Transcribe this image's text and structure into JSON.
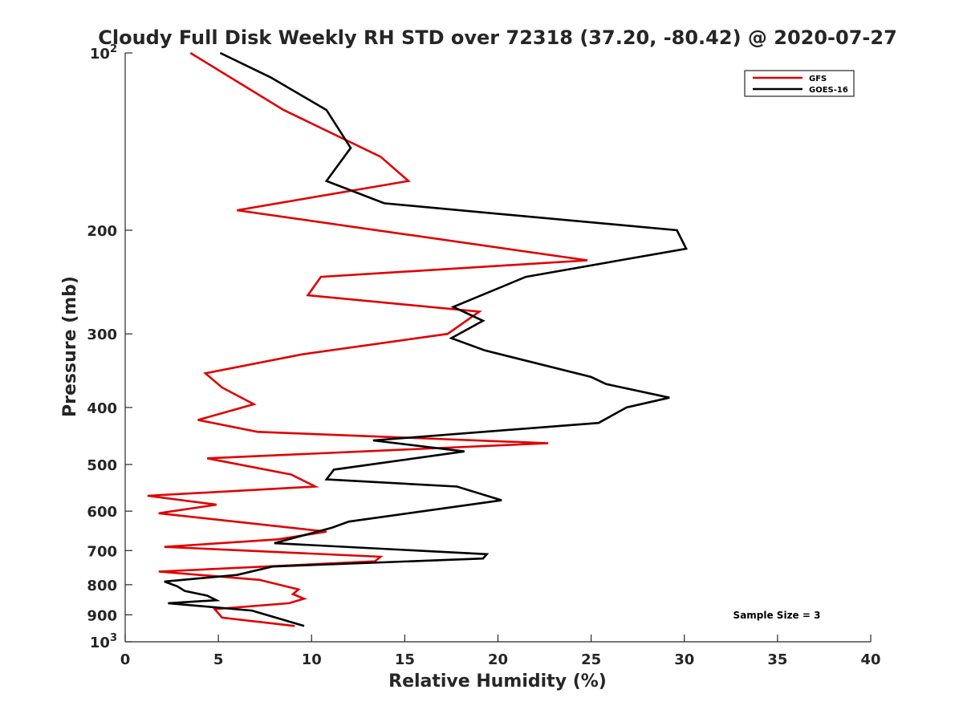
{
  "chart_data": {
    "type": "line",
    "title": "Cloudy Full Disk Weekly RH STD over 72318 (37.20, -80.42) @ 2020-07-27",
    "xlabel": "Relative Humidity (%)",
    "ylabel": "Pressure (mb)",
    "xlim": [
      0,
      40
    ],
    "ylim": [
      100,
      1000
    ],
    "yscale": "log",
    "y_reversed": true,
    "xticks": [
      0,
      5,
      10,
      15,
      20,
      25,
      30,
      35,
      40
    ],
    "yticks": [
      100,
      200,
      300,
      400,
      500,
      600,
      700,
      800,
      900,
      1000
    ],
    "ytick_labels": {
      "100": {
        "base": "10",
        "exp": "2"
      },
      "200": "200",
      "300": "300",
      "400": "400",
      "500": "500",
      "600": "600",
      "700": "700",
      "800": "800",
      "900": "900",
      "1000": {
        "base": "10",
        "exp": "3"
      }
    },
    "legend_position": "top-right",
    "annotation": "Sample Size = 3",
    "series": [
      {
        "name": "GFS",
        "color": "#e00000",
        "points": [
          [
            3.5,
            100
          ],
          [
            8.5,
            125
          ],
          [
            13.7,
            150
          ],
          [
            15.2,
            165
          ],
          [
            6.0,
            185
          ],
          [
            24.8,
            225
          ],
          [
            10.5,
            240
          ],
          [
            9.8,
            258
          ],
          [
            19.0,
            275
          ],
          [
            17.3,
            300
          ],
          [
            9.5,
            325
          ],
          [
            4.3,
            350
          ],
          [
            5.2,
            370
          ],
          [
            6.9,
            395
          ],
          [
            3.9,
            420
          ],
          [
            7.1,
            440
          ],
          [
            22.7,
            460
          ],
          [
            4.4,
            488
          ],
          [
            8.9,
            520
          ],
          [
            10.2,
            545
          ],
          [
            1.2,
            565
          ],
          [
            4.9,
            585
          ],
          [
            1.8,
            605
          ],
          [
            10.8,
            650
          ],
          [
            8.2,
            670
          ],
          [
            2.1,
            690
          ],
          [
            13.7,
            717
          ],
          [
            13.4,
            730
          ],
          [
            1.8,
            760
          ],
          [
            7.2,
            785
          ],
          [
            9.3,
            815
          ],
          [
            9.0,
            830
          ],
          [
            9.6,
            845
          ],
          [
            8.8,
            860
          ],
          [
            4.8,
            880
          ],
          [
            5.2,
            910
          ],
          [
            9.1,
            940
          ]
        ]
      },
      {
        "name": "GOES-16",
        "color": "#000000",
        "points": [
          [
            5.1,
            100
          ],
          [
            7.8,
            110
          ],
          [
            10.8,
            125
          ],
          [
            12.1,
            145
          ],
          [
            10.8,
            165
          ],
          [
            13.9,
            180
          ],
          [
            29.6,
            200
          ],
          [
            30.1,
            215
          ],
          [
            21.5,
            240
          ],
          [
            17.6,
            270
          ],
          [
            19.2,
            285
          ],
          [
            17.5,
            305
          ],
          [
            19.3,
            320
          ],
          [
            25.0,
            355
          ],
          [
            25.8,
            365
          ],
          [
            29.2,
            385
          ],
          [
            26.9,
            400
          ],
          [
            25.4,
            425
          ],
          [
            13.3,
            455
          ],
          [
            18.2,
            475
          ],
          [
            11.2,
            510
          ],
          [
            10.8,
            530
          ],
          [
            17.8,
            545
          ],
          [
            20.2,
            575
          ],
          [
            16.0,
            600
          ],
          [
            12.0,
            625
          ],
          [
            11.1,
            640
          ],
          [
            8.0,
            680
          ],
          [
            19.4,
            710
          ],
          [
            19.2,
            722
          ],
          [
            7.9,
            745
          ],
          [
            6.0,
            770
          ],
          [
            2.1,
            790
          ],
          [
            2.8,
            805
          ],
          [
            3.2,
            820
          ],
          [
            4.4,
            835
          ],
          [
            4.9,
            850
          ],
          [
            2.3,
            860
          ],
          [
            6.8,
            885
          ],
          [
            9.6,
            940
          ]
        ]
      }
    ]
  }
}
